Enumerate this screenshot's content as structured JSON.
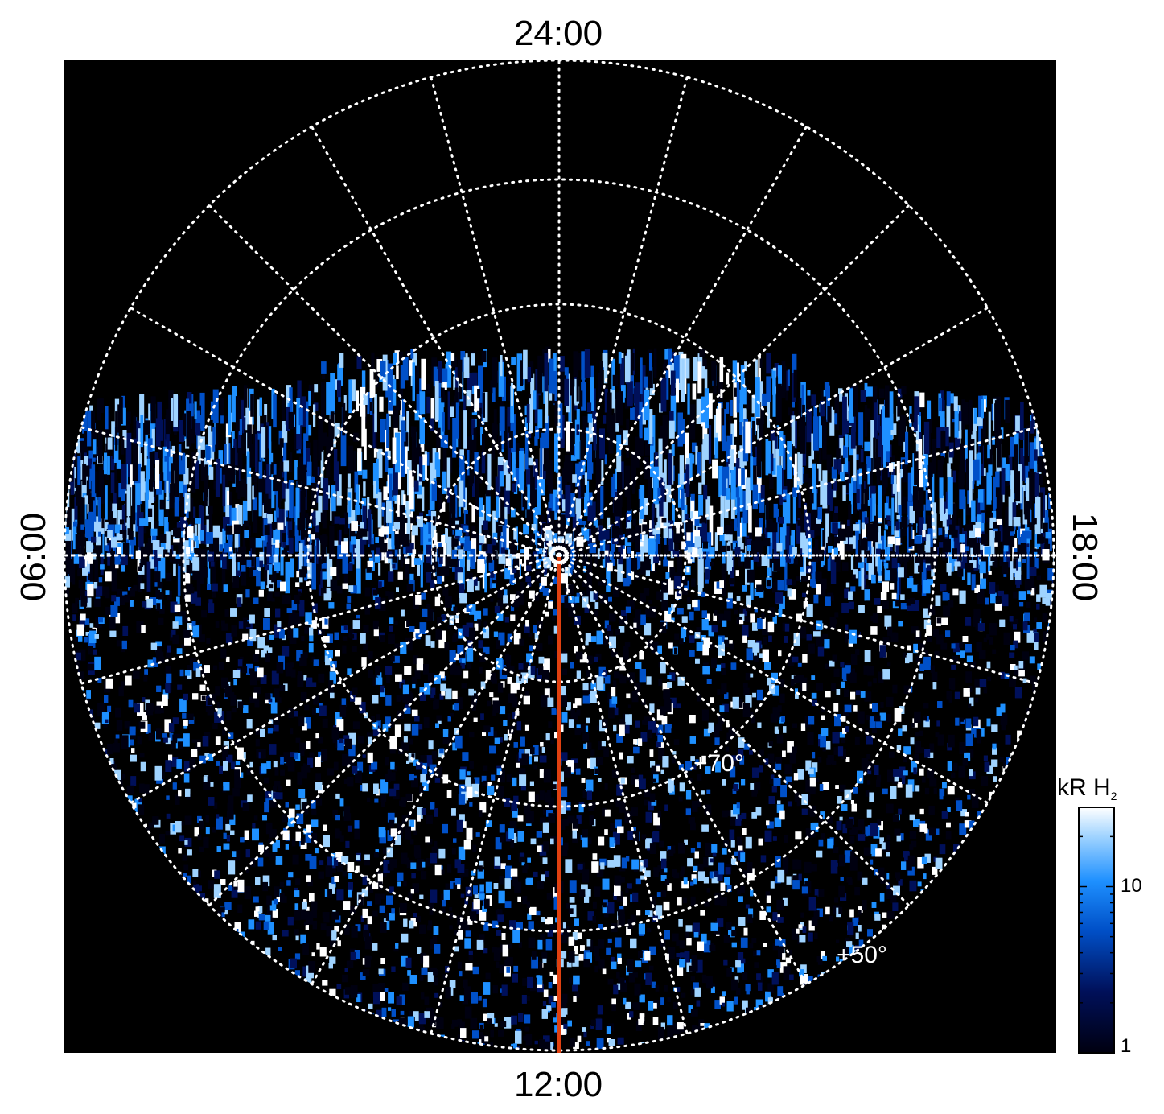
{
  "local_time_labels": {
    "top": "24:00",
    "bottom": "12:00",
    "left": "06:00",
    "right": "18:00"
  },
  "latitude_labels": [
    "+70°",
    "+50°"
  ],
  "colorbar": {
    "title": "kR H",
    "title_subscript": "2",
    "tick_labels": [
      "10",
      "1"
    ],
    "range": [
      1,
      30
    ],
    "scale": "log",
    "colors": [
      "#000010",
      "#00105a",
      "#0050c8",
      "#1e90ff",
      "#9fd3ff",
      "#ffffff"
    ]
  },
  "colors": {
    "background": "#000000",
    "grid": "#ffffff",
    "meridian_line": "#e04010",
    "page": "#ffffff"
  }
}
